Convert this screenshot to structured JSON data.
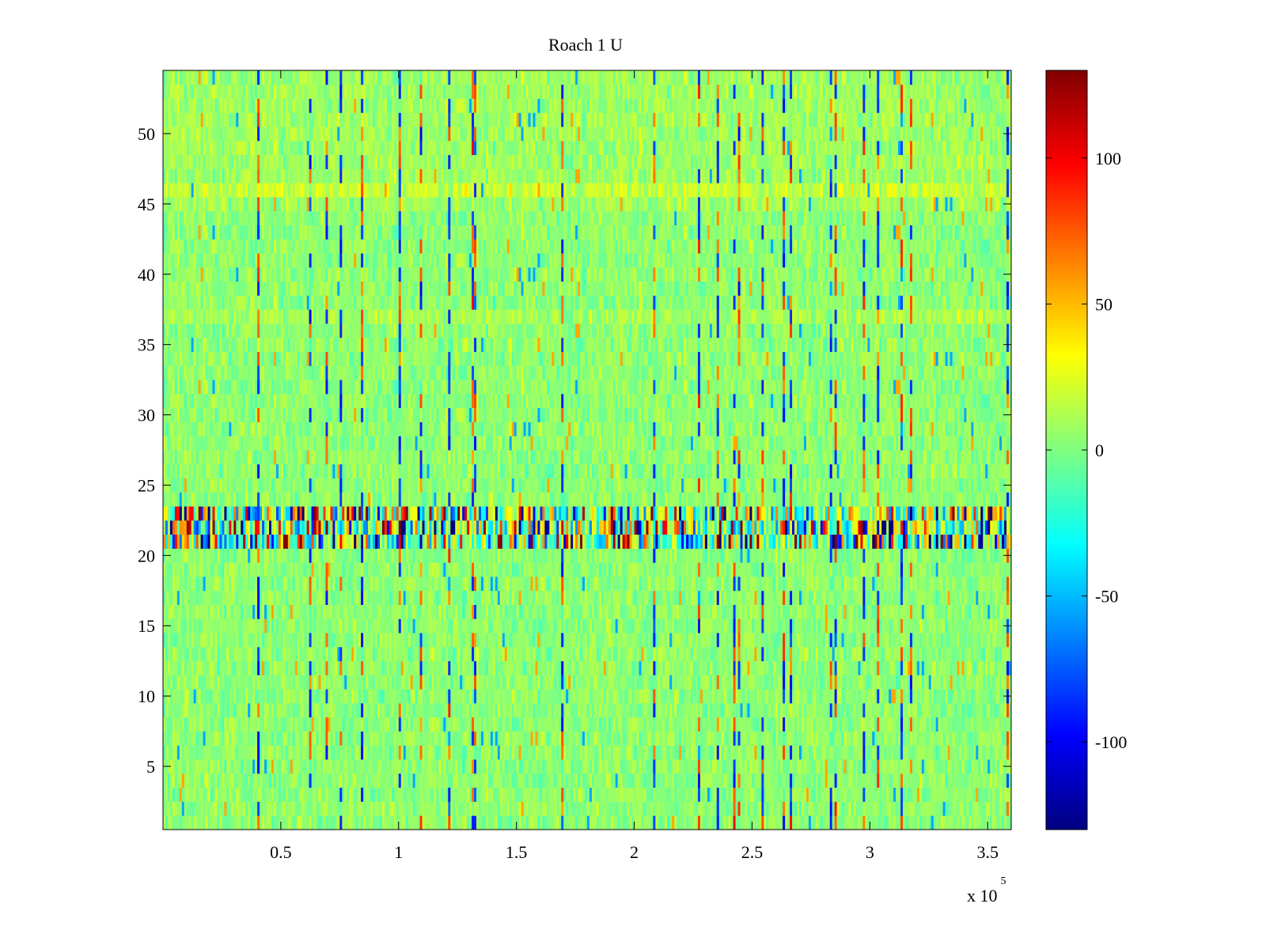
{
  "chart_data": {
    "type": "heatmap",
    "title": "Roach 1 U",
    "xlabel": "",
    "ylabel": "",
    "xlim": [
      0,
      360000
    ],
    "ylim": [
      0.5,
      54.5
    ],
    "x_tick_values": [
      50000,
      100000,
      150000,
      200000,
      250000,
      300000,
      350000
    ],
    "x_tick_labels": [
      "0.5",
      "1",
      "1.5",
      "2",
      "2.5",
      "3",
      "3.5"
    ],
    "x_exponent_label": {
      "base": "x 10",
      "exponent": "5"
    },
    "y_tick_values": [
      5,
      10,
      15,
      20,
      25,
      30,
      35,
      40,
      45,
      50
    ],
    "y_tick_labels": [
      "5",
      "10",
      "15",
      "20",
      "25",
      "30",
      "35",
      "40",
      "45",
      "50"
    ],
    "n_rows": 54,
    "colormap": "jet",
    "clim": [
      -130,
      130
    ],
    "colorbar": {
      "tick_values": [
        -100,
        -50,
        0,
        50,
        100
      ],
      "tick_labels": [
        "-100",
        "-50",
        "0",
        "50",
        "100"
      ]
    },
    "value_summary": {
      "typical_range": [
        -25,
        30
      ],
      "high_variance_rows": [
        21,
        22,
        23
      ],
      "high_variance_range": [
        -130,
        130
      ]
    },
    "grid": false
  }
}
